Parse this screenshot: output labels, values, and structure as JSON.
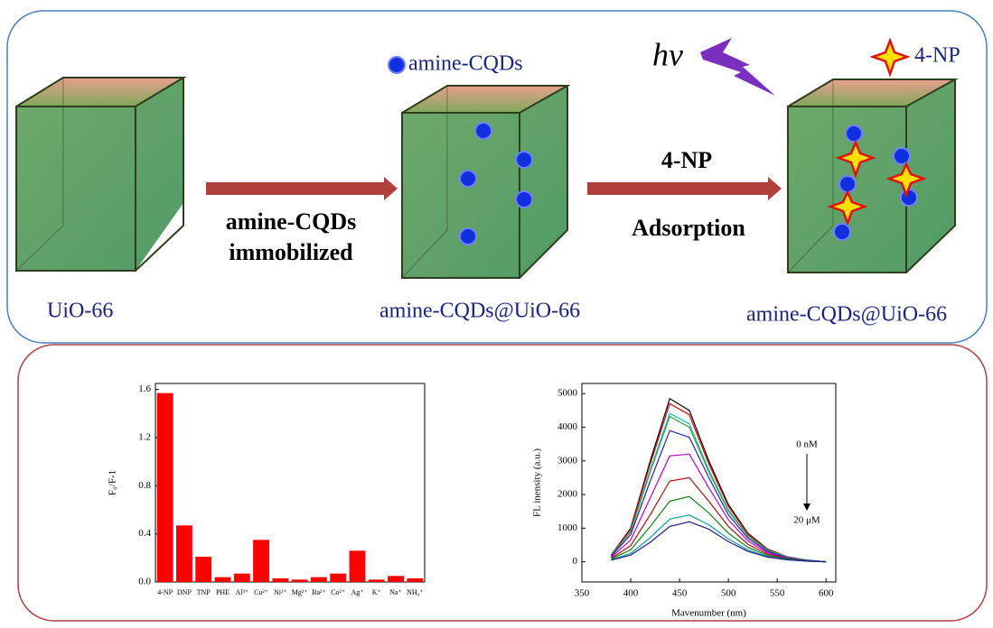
{
  "diagram": {
    "cqd_legend": "amine-CQDs",
    "light": "hv",
    "np_legend": "4-NP",
    "step1": [
      "amine-CQDs",
      "immobilized"
    ],
    "step2": [
      "4-NP",
      "Adsorption"
    ],
    "captions": [
      "UiO-66",
      "amine-CQDs@UiO-66",
      "amine-CQDs@UiO-66"
    ]
  },
  "chart_data": [
    {
      "type": "bar",
      "ylabel": "F₀/F-1",
      "color": "#ff0000",
      "categories": [
        "4-NP",
        "DNP",
        "TNP",
        "PHE",
        "Al³⁺",
        "Cu²⁺",
        "Ni²⁺",
        "Mg²⁺",
        "Ba²⁺",
        "Co²⁺",
        "Ag⁺",
        "K⁺",
        "Na⁺",
        "NH₄⁺"
      ],
      "values": [
        1.57,
        0.47,
        0.21,
        0.04,
        0.07,
        0.35,
        0.03,
        0.02,
        0.04,
        0.07,
        0.26,
        0.02,
        0.05,
        0.03
      ],
      "ylim": [
        0,
        1.65
      ],
      "yticks": [
        {
          "value": 0,
          "label": "0.0"
        },
        0.4,
        0.8,
        1.2,
        1.6
      ]
    },
    {
      "type": "line",
      "xlabel": "Mavenumber (nm)",
      "ylabel": "FL inensity (a.u.)",
      "x": [
        380,
        400,
        420,
        440,
        460,
        480,
        500,
        520,
        540,
        560,
        580,
        600
      ],
      "series": [
        {
          "color": "#000000",
          "values": [
            200,
            1000,
            3000,
            4850,
            4500,
            3000,
            1700,
            850,
            380,
            150,
            50,
            0
          ]
        },
        {
          "color": "#e00000",
          "values": [
            190,
            970,
            2910,
            4700,
            4370,
            2910,
            1650,
            820,
            370,
            150,
            50,
            0
          ]
        },
        {
          "color": "#00c0c0",
          "values": [
            180,
            910,
            2730,
            4410,
            4100,
            2730,
            1550,
            770,
            350,
            140,
            50,
            0
          ]
        },
        {
          "color": "#40a040",
          "values": [
            180,
            890,
            2670,
            4320,
            4000,
            2670,
            1510,
            760,
            340,
            130,
            40,
            0
          ]
        },
        {
          "color": "#2020c0",
          "values": [
            160,
            810,
            2400,
            3900,
            3700,
            2500,
            1400,
            700,
            310,
            120,
            40,
            0
          ]
        },
        {
          "color": "#c000c0",
          "values": [
            130,
            650,
            1900,
            3150,
            3200,
            2200,
            1250,
            620,
            270,
            100,
            30,
            0
          ]
        },
        {
          "color": "#a01010",
          "values": [
            100,
            480,
            1400,
            2400,
            2500,
            1800,
            1050,
            520,
            230,
            90,
            30,
            0
          ]
        },
        {
          "color": "#108010",
          "values": [
            80,
            360,
            1050,
            1800,
            1940,
            1450,
            850,
            430,
            190,
            80,
            20,
            0
          ]
        },
        {
          "color": "#10a0a0",
          "values": [
            60,
            250,
            720,
            1270,
            1390,
            1100,
            680,
            350,
            160,
            60,
            20,
            0
          ]
        },
        {
          "color": "#202090",
          "values": [
            50,
            200,
            580,
            1050,
            1190,
            970,
            600,
            310,
            140,
            60,
            20,
            0
          ]
        }
      ],
      "xlim": [
        350,
        610
      ],
      "xticks": [
        350,
        400,
        450,
        500,
        550,
        600
      ],
      "ylim": [
        -600,
        5300
      ],
      "yticks": [
        0,
        1000,
        2000,
        3000,
        4000,
        5000
      ],
      "annotations": [
        "0 nM",
        "20 μM"
      ]
    }
  ]
}
